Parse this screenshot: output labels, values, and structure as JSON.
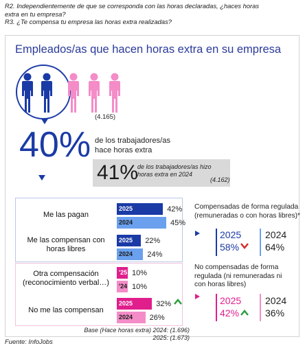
{
  "questions": {
    "r2_line1": "R2. Independientemente de que se corresponda con las horas declaradas, ¿haces horas",
    "r2_line2": "extra en tu empresa?",
    "r3": "R3. ¿Te compensa tu empresa las horas extra realizadas?"
  },
  "panel_title": "Empleados/as que hacen horas extra en su empresa",
  "headline": {
    "sample": "(4.165)",
    "big_value": "40%",
    "text_line1": "de los trabajadores/as",
    "text_line2": "hace horas extra",
    "prev_value": "41%",
    "prev_text_line1": "de los trabajadores/as hizo",
    "prev_text_line2": "horas extra en 2024",
    "prev_sample": "(4.162)"
  },
  "colors": {
    "navy": "#1a3aa6",
    "light_blue": "#6aa0ee",
    "magenta": "#e01e8c",
    "pink": "#f48cc8",
    "person_pink": "#f48cc8",
    "green": "#2e9e3e",
    "red": "#d82a2a"
  },
  "chart_data": {
    "type": "bar",
    "categories": [
      "Me las pagan",
      "Me las compensan con horas libres",
      "Otra compensación (reconocimiento verbal…)",
      "No me las compensan"
    ],
    "series": [
      {
        "name": "2025",
        "values": [
          42,
          22,
          10,
          32
        ]
      },
      {
        "name": "2024",
        "values": [
          45,
          24,
          10,
          26
        ]
      }
    ],
    "unit": "%",
    "base": "Base (Hace horas extra)  2024: (1.696)",
    "base_2025": "2025: (1.673)"
  },
  "bars": {
    "cat1": {
      "label_line1": "Me las pagan",
      "label_line2": "",
      "y25_label": "2025",
      "y24_label": "2024",
      "v25": "42%",
      "v24": "45%"
    },
    "cat2": {
      "label_line1": "Me las compensan con",
      "label_line2": "horas libres",
      "y25_label": "2025",
      "y24_label": "2024",
      "v25": "22%",
      "v24": "24%"
    },
    "cat3": {
      "label_line1": "Otra compensación",
      "label_line2": "(reconocimiento verbal…)",
      "y25_label": "'25",
      "y24_label": "'24",
      "v25": "10%",
      "v24": "10%"
    },
    "cat4": {
      "label_line1": "No me las compensan",
      "label_line2": "",
      "y25_label": "2025",
      "y24_label": "2024",
      "v25": "32%",
      "v24": "26%"
    }
  },
  "right_regulated": {
    "title_line1": "Compensadas de forma regulada",
    "title_line2": "(remuneradas o con horas libres)*",
    "year_a": "2025",
    "value_a": "58%",
    "year_b": "2024",
    "value_b": "64%",
    "trend": "down"
  },
  "right_unregulated": {
    "title_line1": "No compensadas de forma",
    "title_line2": "regulada (ni remuneradas ni",
    "title_line3": "con horas libres)",
    "year_a": "2025",
    "value_a": "42%",
    "year_b": "2024",
    "value_b": "36%",
    "trend": "up"
  },
  "footer": {
    "base_line1": "Base (Hace horas extra)  2024: (1.696)",
    "base_line2": "2025: (1.673)",
    "source": "Fuente: InfoJobs"
  }
}
